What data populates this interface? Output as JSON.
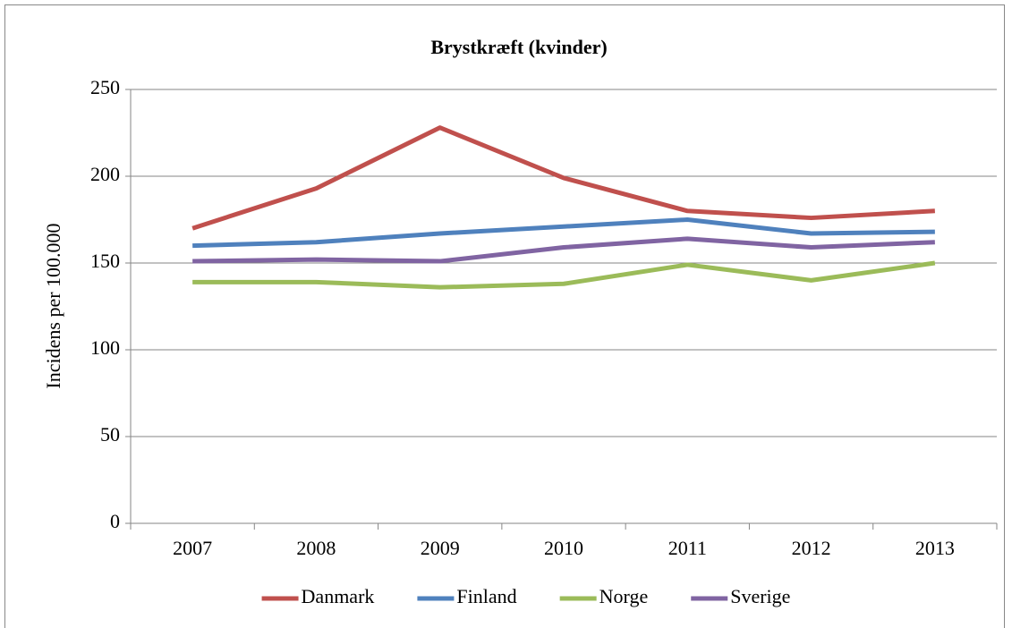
{
  "chart_data": {
    "type": "line",
    "title": "Brystkræft (kvinder)",
    "y_label": "Incidens  per 100.000",
    "categories": [
      "2007",
      "2008",
      "2009",
      "2010",
      "2011",
      "2012",
      "2013"
    ],
    "series": [
      {
        "name": "Danmark",
        "color": "#c0504d",
        "values": [
          170,
          193,
          228,
          199,
          180,
          176,
          180
        ]
      },
      {
        "name": "Finland",
        "color": "#4f81bd",
        "values": [
          160,
          162,
          167,
          171,
          175,
          167,
          168
        ]
      },
      {
        "name": "Norge",
        "color": "#9bbb59",
        "values": [
          139,
          139,
          136,
          138,
          149,
          140,
          150
        ]
      },
      {
        "name": "Sverige",
        "color": "#8064a2",
        "values": [
          151,
          152,
          151,
          159,
          164,
          159,
          162
        ]
      }
    ],
    "ylim": [
      0,
      250
    ],
    "yticks": [
      0,
      50,
      100,
      150,
      200,
      250
    ],
    "grid": true,
    "legend": "bottom"
  }
}
